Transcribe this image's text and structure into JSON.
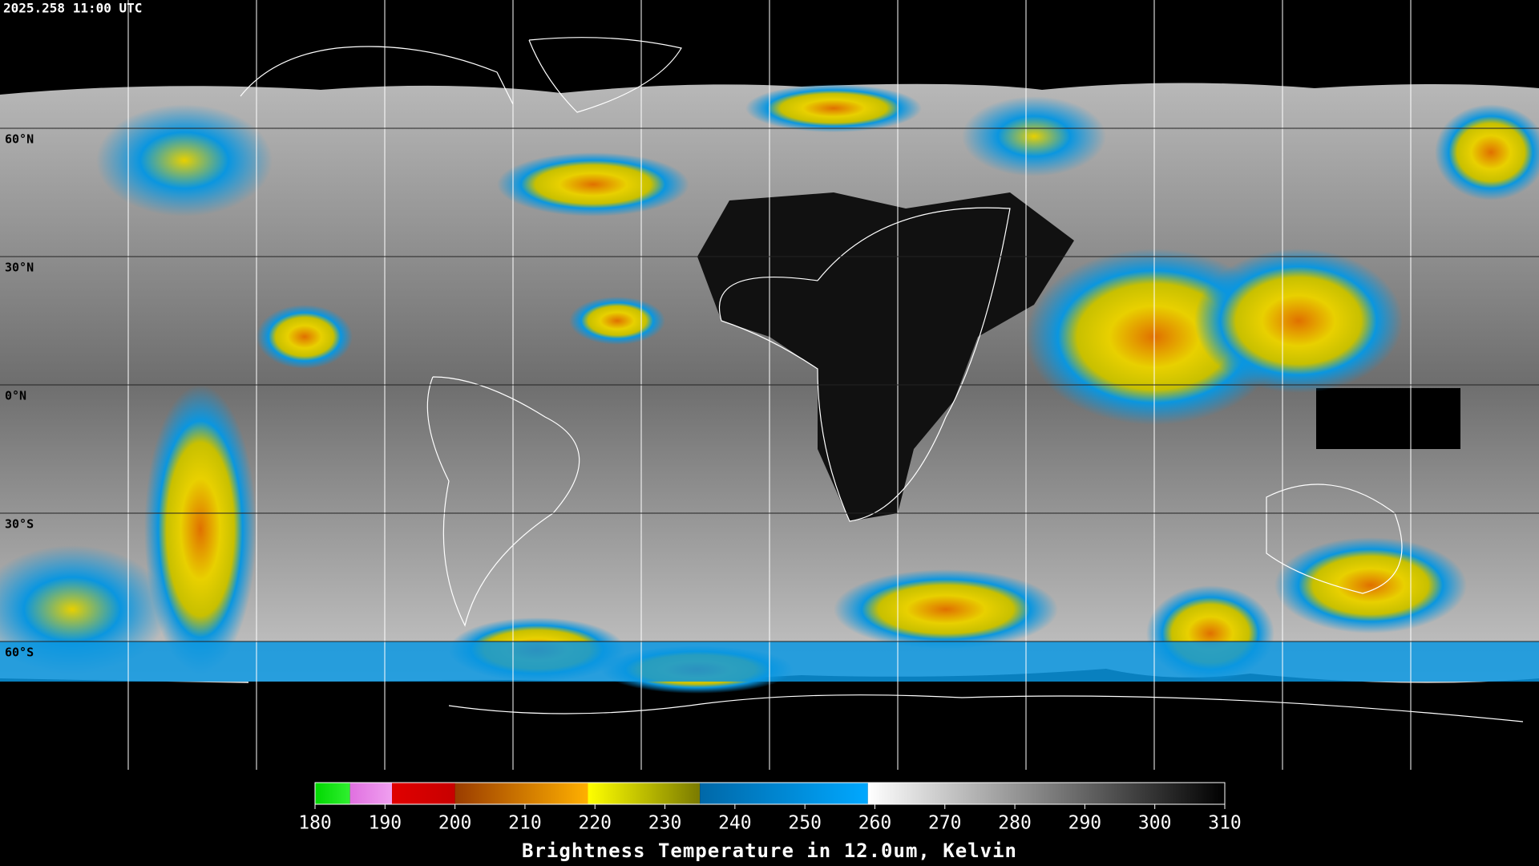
{
  "timestamp": "2025.258 11:00 UTC",
  "map": {
    "lonlim": [
      -180,
      180
    ],
    "latlim": [
      -90,
      90
    ],
    "lonticks": [
      -150,
      -120,
      -90,
      -60,
      -30,
      0,
      30,
      60,
      90,
      120,
      150
    ],
    "latticks": [
      {
        "value": 60,
        "label": "60°N"
      },
      {
        "value": 30,
        "label": "30°N"
      },
      {
        "value": 0,
        "label": "0°N"
      },
      {
        "value": -30,
        "label": "30°S"
      },
      {
        "value": -60,
        "label": "60°S"
      }
    ]
  },
  "colorbar": {
    "title": "Brightness Temperature in 12.0um, Kelvin",
    "lim": [
      180,
      310
    ],
    "ticks": [
      180,
      190,
      200,
      210,
      220,
      230,
      240,
      250,
      260,
      270,
      280,
      290,
      300,
      310
    ],
    "segments": [
      {
        "from": 180,
        "to": 185,
        "colors": [
          "#00d800",
          "#30f030"
        ]
      },
      {
        "from": 185,
        "to": 191,
        "colors": [
          "#e070e0",
          "#f0a0f0"
        ]
      },
      {
        "from": 191,
        "to": 200,
        "colors": [
          "#e00000",
          "#c80000"
        ]
      },
      {
        "from": 200,
        "to": 219,
        "colors": [
          "#9a3c00",
          "#ffb000"
        ]
      },
      {
        "from": 219,
        "to": 235,
        "colors": [
          "#ffff00",
          "#7a7a00"
        ]
      },
      {
        "from": 235,
        "to": 259,
        "colors": [
          "#0068a8",
          "#00a8ff"
        ]
      },
      {
        "from": 259,
        "to": 310,
        "colors": [
          "#ffffff",
          "#000000"
        ]
      }
    ]
  }
}
